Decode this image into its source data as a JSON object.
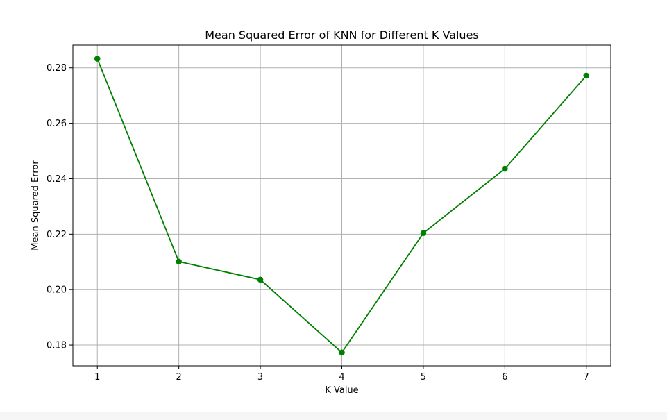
{
  "chart_data": {
    "type": "line",
    "title": "Mean Squared Error of KNN for Different K Values",
    "xlabel": "K Value",
    "ylabel": "Mean Squared Error",
    "x": [
      1,
      2,
      3,
      4,
      5,
      6,
      7
    ],
    "series": [
      {
        "values": [
          0.2833,
          0.2101,
          0.2036,
          0.1773,
          0.2204,
          0.2436,
          0.2772
        ],
        "color": "#008000",
        "marker": "circle"
      }
    ],
    "x_ticks": [
      "1",
      "2",
      "3",
      "4",
      "5",
      "6",
      "7"
    ],
    "y_ticks": [
      "0.18",
      "0.20",
      "0.22",
      "0.24",
      "0.26",
      "0.28"
    ],
    "xlim": [
      0.7,
      7.3
    ],
    "ylim": [
      0.1725,
      0.2882
    ],
    "grid": true
  }
}
